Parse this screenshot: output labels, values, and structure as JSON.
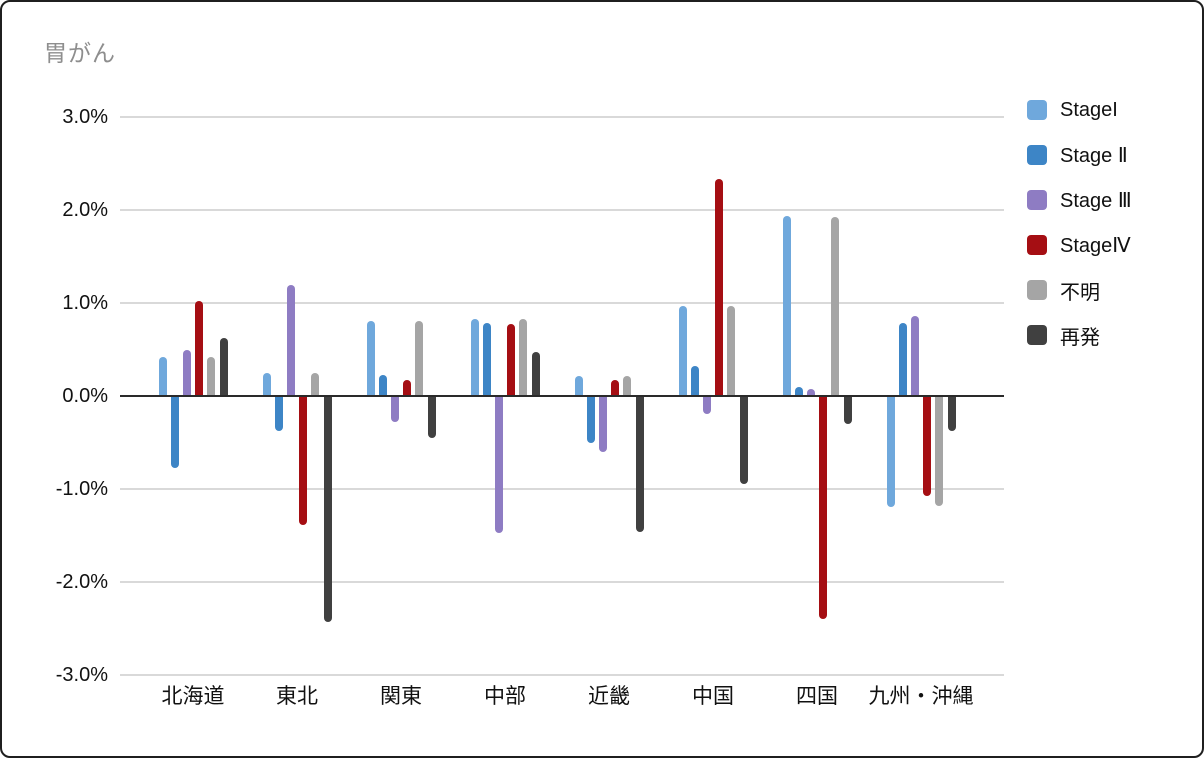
{
  "title": "胃がん",
  "colors": {
    "background": "#ffffff",
    "frame_border": "#1f1f1f",
    "title_text": "#8e8e8e",
    "axis_text": "#111111",
    "gridline": "#d9d9d9",
    "zero_line": "#2a2a2a"
  },
  "chart_data": {
    "type": "bar",
    "title": "胃がん",
    "xlabel": "",
    "ylabel": "",
    "ylim": [
      -3.0,
      3.0
    ],
    "grid": true,
    "legend_position": "right",
    "yticks": [
      "3.0%",
      "2.0%",
      "1.0%",
      "0.0%",
      "-1.0%",
      "-2.0%",
      "-3.0%"
    ],
    "categories": [
      "北海道",
      "東北",
      "関東",
      "中部",
      "近畿",
      "中国",
      "四国",
      "九州・沖縄"
    ],
    "series": [
      {
        "key": "stage1",
        "name": "StageI",
        "color": "#6fa8dc",
        "values": [
          0.42,
          0.25,
          0.81,
          0.83,
          0.21,
          0.97,
          1.94,
          -1.19
        ]
      },
      {
        "key": "stage2",
        "name": "Stage Ⅱ",
        "color": "#3d85c6",
        "values": [
          -0.77,
          -0.38,
          0.23,
          0.79,
          -0.51,
          0.32,
          0.1,
          0.79
        ]
      },
      {
        "key": "stage3",
        "name": "Stage Ⅲ",
        "color": "#8e7cc3",
        "values": [
          0.49,
          1.19,
          -0.28,
          -1.47,
          -0.6,
          -0.19,
          0.07,
          0.86
        ]
      },
      {
        "key": "stage4",
        "name": "StageⅣ",
        "color": "#a50e13",
        "values": [
          1.02,
          -1.39,
          0.17,
          0.77,
          0.17,
          2.33,
          -2.4,
          -1.08
        ]
      },
      {
        "key": "unknown",
        "name": "不明",
        "color": "#a5a5a5",
        "values": [
          0.42,
          0.25,
          0.81,
          0.83,
          0.21,
          0.97,
          1.92,
          -1.18
        ]
      },
      {
        "key": "recurrence",
        "name": "再発",
        "color": "#404040",
        "values": [
          0.62,
          -2.43,
          -0.45,
          0.47,
          -1.46,
          -0.95,
          -0.3,
          -0.38
        ]
      }
    ]
  }
}
